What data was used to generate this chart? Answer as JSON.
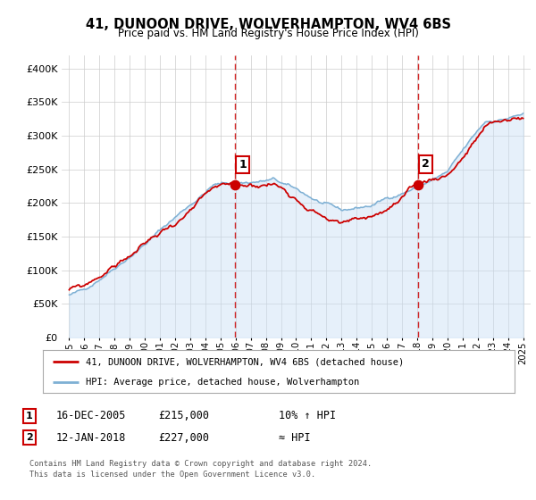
{
  "title": "41, DUNOON DRIVE, WOLVERHAMPTON, WV4 6BS",
  "subtitle": "Price paid vs. HM Land Registry's House Price Index (HPI)",
  "background_color": "#ffffff",
  "plot_bg_color": "#ffffff",
  "hpi_fill_color": "#c8dff5",
  "red_line_color": "#cc0000",
  "blue_line_color": "#7eb0d4",
  "grid_color": "#cccccc",
  "vline_color": "#cc0000",
  "sale1_date_num": 2005.96,
  "sale1_price": 215000,
  "sale1_label": "1",
  "sale2_date_num": 2018.04,
  "sale2_price": 227000,
  "sale2_label": "2",
  "ylim": [
    0,
    420000
  ],
  "yticks": [
    0,
    50000,
    100000,
    150000,
    200000,
    250000,
    300000,
    350000,
    400000
  ],
  "ytick_labels": [
    "£0",
    "£50K",
    "£100K",
    "£150K",
    "£200K",
    "£250K",
    "£300K",
    "£350K",
    "£400K"
  ],
  "xlim_start": 1994.5,
  "xlim_end": 2025.5,
  "legend_line1": "41, DUNOON DRIVE, WOLVERHAMPTON, WV4 6BS (detached house)",
  "legend_line2": "HPI: Average price, detached house, Wolverhampton",
  "annotation1_num": "1",
  "annotation1_date": "16-DEC-2005",
  "annotation1_price": "£215,000",
  "annotation1_hpi": "10% ↑ HPI",
  "annotation2_num": "2",
  "annotation2_date": "12-JAN-2018",
  "annotation2_price": "£227,000",
  "annotation2_hpi": "≈ HPI",
  "footer1": "Contains HM Land Registry data © Crown copyright and database right 2024.",
  "footer2": "This data is licensed under the Open Government Licence v3.0."
}
